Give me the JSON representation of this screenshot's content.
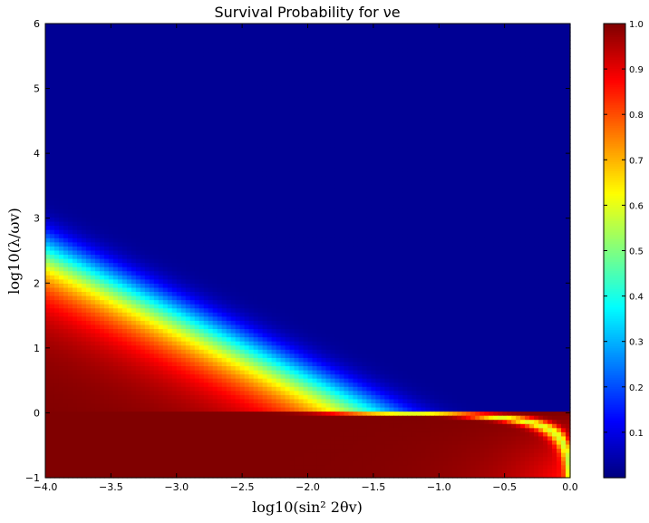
{
  "chart_data": {
    "type": "heatmap",
    "title": "Survival Probability for νe",
    "xlabel": "log10(sin² 2θv)",
    "ylabel": "log10(λ/ωv)",
    "xlim": [
      -4.0,
      0.0
    ],
    "ylim": [
      -1,
      6
    ],
    "x_ticks": [
      "−4.0",
      "−3.5",
      "−3.0",
      "−2.5",
      "−2.0",
      "−1.5",
      "−1.0",
      "−0.5",
      "0.0"
    ],
    "y_ticks": [
      "−1",
      "0",
      "1",
      "2",
      "3",
      "4",
      "5",
      "6"
    ],
    "x_tick_values": [
      -4.0,
      -3.5,
      -3.0,
      -2.5,
      -2.0,
      -1.5,
      -1.0,
      -0.5,
      0.0
    ],
    "y_tick_values": [
      -1,
      0,
      1,
      2,
      3,
      4,
      5,
      6
    ],
    "colorbar": {
      "colormap": "jet",
      "range": [
        0.0,
        1.0
      ],
      "ticks": [
        "0.1",
        "0.2",
        "0.3",
        "0.4",
        "0.5",
        "0.6",
        "0.7",
        "0.8",
        "0.9",
        "1.0"
      ],
      "tick_values": [
        0.1,
        0.2,
        0.3,
        0.4,
        0.5,
        0.6,
        0.7,
        0.8,
        0.9,
        1.0
      ]
    },
    "grid": false,
    "legend": "none"
  }
}
